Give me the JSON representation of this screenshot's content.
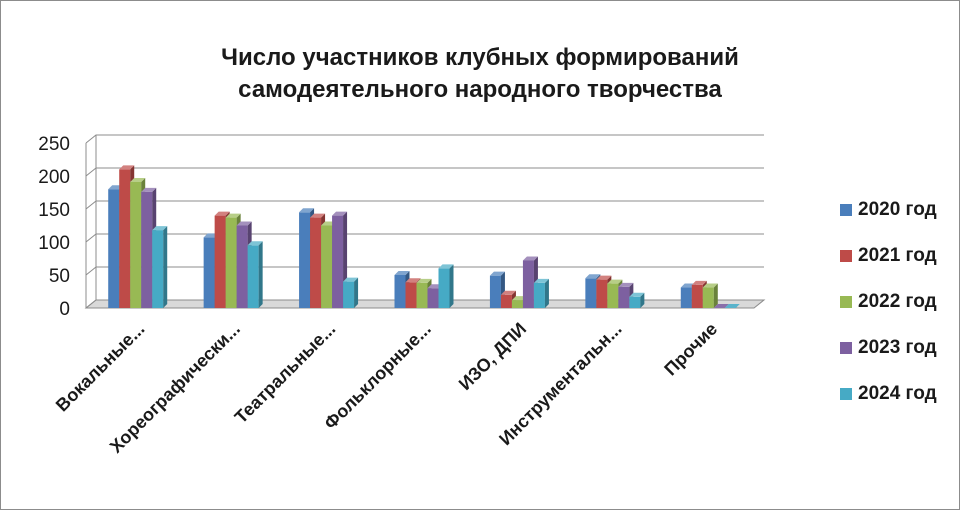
{
  "chart_data": {
    "type": "bar",
    "title": "Число участников клубных формирований самодеятельного народного творчества",
    "categories": [
      "Вокальные...",
      "Хореографически...",
      "Театральные...",
      "Фольклорные...",
      "ИЗО, ДПИ",
      "Инструментальн...",
      "Прочие"
    ],
    "series": [
      {
        "name": "2020 год",
        "color": "#4a7ebb",
        "values": [
          180,
          107,
          145,
          50,
          49,
          45,
          31
        ]
      },
      {
        "name": "2021 год",
        "color": "#be4b48",
        "values": [
          210,
          140,
          137,
          39,
          20,
          43,
          35
        ]
      },
      {
        "name": "2022 год",
        "color": "#98b954",
        "values": [
          191,
          137,
          125,
          38,
          12,
          37,
          31
        ]
      },
      {
        "name": "2023 год",
        "color": "#7d60a0",
        "values": [
          176,
          125,
          140,
          30,
          72,
          32,
          0
        ]
      },
      {
        "name": "2024 год",
        "color": "#46aac5",
        "values": [
          118,
          95,
          40,
          60,
          38,
          17,
          0
        ]
      }
    ],
    "yticks": [
      0,
      50,
      100,
      150,
      200,
      250
    ],
    "ylim": [
      0,
      250
    ],
    "grid": true,
    "legend": "right"
  }
}
